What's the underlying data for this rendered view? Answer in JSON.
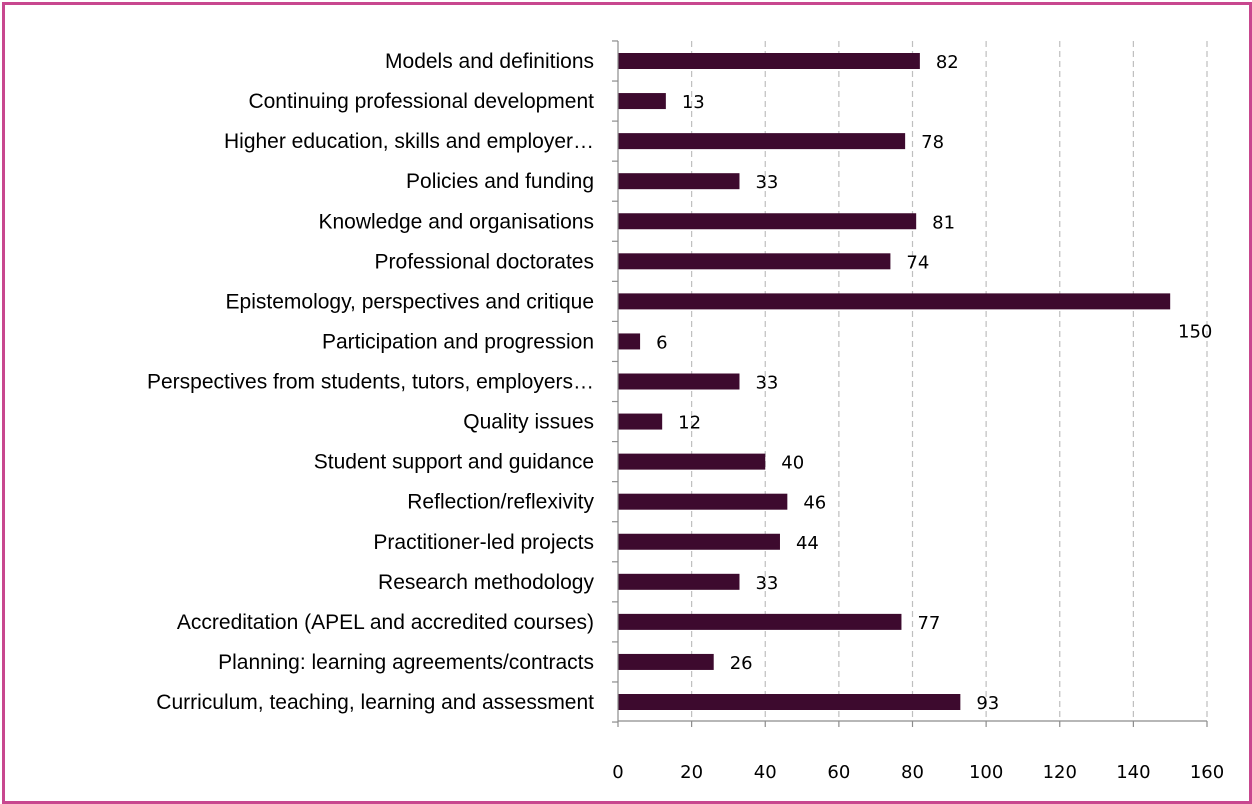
{
  "chart_data": {
    "type": "bar",
    "orientation": "horizontal",
    "categories": [
      "Models and definitions",
      "Continuing professional development",
      "Higher education, skills and employer…",
      "Policies and funding",
      "Knowledge and organisations",
      "Professional doctorates",
      "Epistemology, perspectives and critique",
      "Participation and progression",
      "Perspectives from students, tutors, employers…",
      "Quality issues",
      "Student support and guidance",
      "Reflection/reflexivity",
      "Practitioner-led projects",
      "Research methodology",
      "Accreditation (APEL and accredited courses)",
      "Planning: learning agreements/contracts",
      "Curriculum, teaching, learning and assessment"
    ],
    "values": [
      82,
      13,
      78,
      33,
      81,
      74,
      150,
      6,
      33,
      12,
      40,
      46,
      44,
      33,
      77,
      26,
      93
    ],
    "xlim": [
      0,
      160
    ],
    "xticks": [
      0,
      20,
      40,
      60,
      80,
      100,
      120,
      140,
      160
    ],
    "title": "",
    "xlabel": "",
    "ylabel": "",
    "grid": "vertical dashed",
    "legend": "none",
    "colors": {
      "bar": "#3d0a2e",
      "frame_border": "#c8478f",
      "grid": "#bfbfbf",
      "axis": "#8c8c8c"
    }
  }
}
